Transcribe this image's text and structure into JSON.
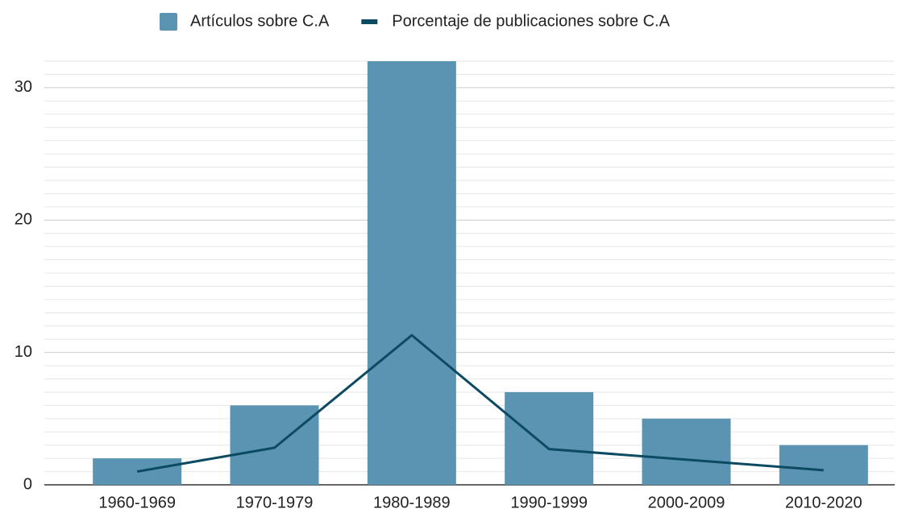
{
  "chart_data": {
    "type": "bar-line",
    "categories": [
      "1960-1969",
      "1970-1979",
      "1980-1989",
      "1990-1999",
      "2000-2009",
      "2010-2020"
    ],
    "series": [
      {
        "name": "Artículos sobre C.A",
        "type": "bar",
        "color": "#5b93b2",
        "values": [
          2,
          6,
          32,
          7,
          5,
          3
        ]
      },
      {
        "name": "Porcentaje de publicaciones sobre C.A",
        "type": "line",
        "color": "#0c4a62",
        "values": [
          1,
          2.8,
          11.3,
          2.7,
          1.9,
          1.1
        ]
      }
    ],
    "ylim": [
      0,
      32
    ],
    "yticks": [
      0,
      10,
      20,
      30
    ],
    "minor_yticks": [
      1,
      2,
      3,
      4,
      5,
      6,
      7,
      8,
      9,
      11,
      12,
      13,
      14,
      15,
      16,
      17,
      18,
      19,
      21,
      22,
      23,
      24,
      25,
      26,
      27,
      28,
      29,
      31,
      32
    ],
    "grid": true,
    "legend": "top"
  }
}
